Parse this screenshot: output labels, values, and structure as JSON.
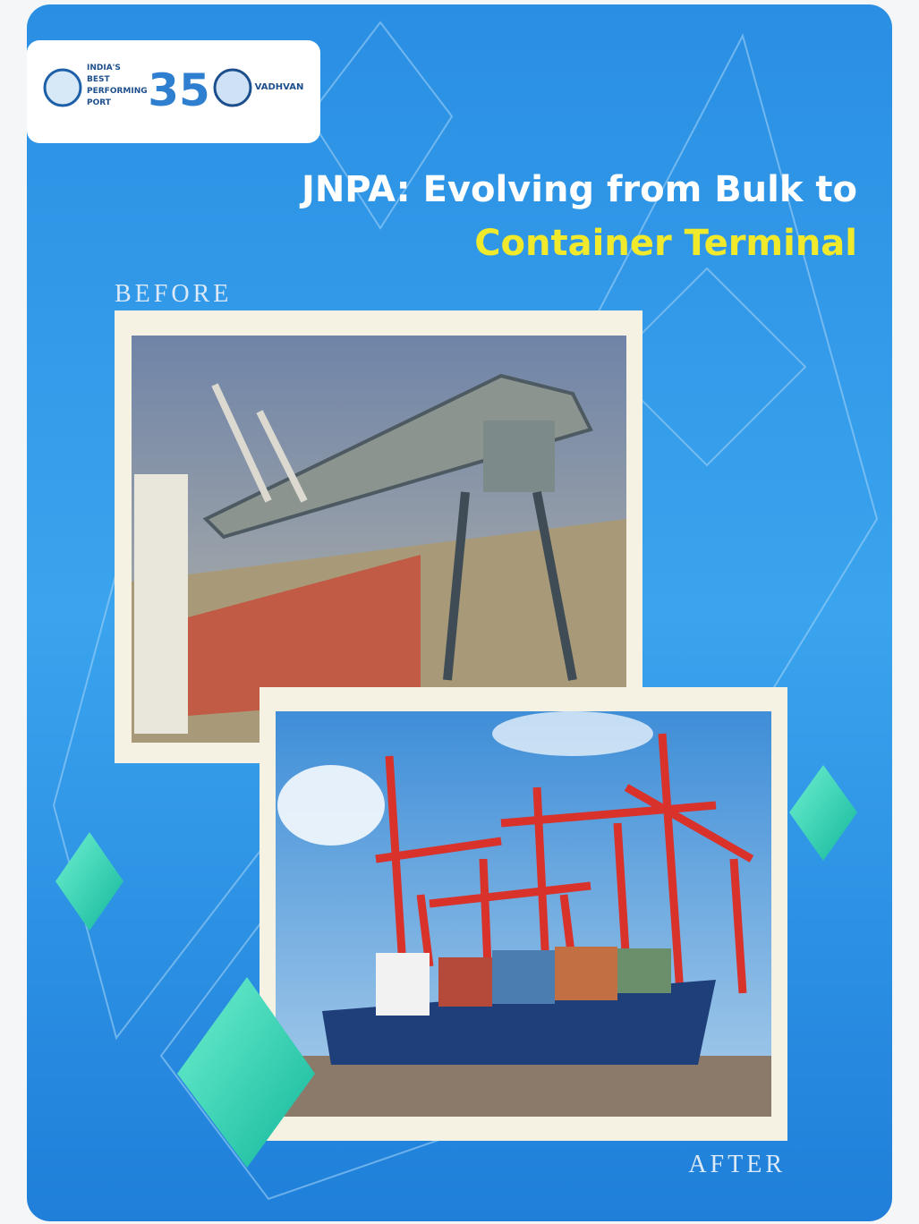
{
  "logo": {
    "port_lines": [
      "INDIA'S",
      "BEST",
      "PERFORMING",
      "PORT"
    ],
    "anniversary": "35",
    "partner": "VADHVAN"
  },
  "header": {
    "title_line1": "JNPA: Evolving from Bulk to",
    "title_line2": "Container Terminal"
  },
  "photos": {
    "before_label": "BEFORE",
    "after_label": "AFTER"
  }
}
